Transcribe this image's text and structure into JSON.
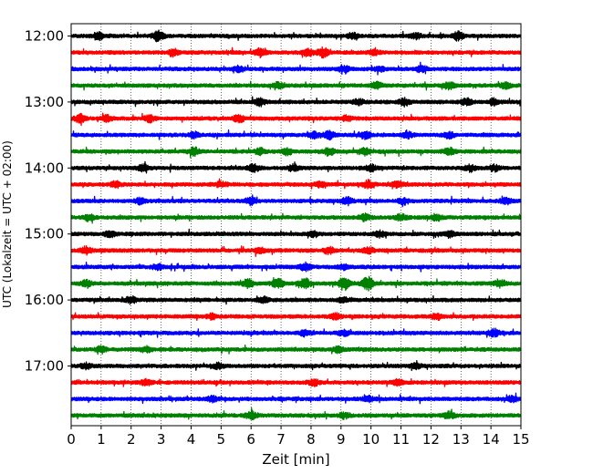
{
  "chart_data": {
    "type": "line",
    "title": "",
    "xlabel": "Zeit  [min]",
    "ylabel": "UTC (Lokalzeit = UTC + 02:00)",
    "xlim": [
      0,
      15
    ],
    "x_ticks": [
      "0",
      "1",
      "2",
      "3",
      "4",
      "5",
      "6",
      "7",
      "8",
      "9",
      "10",
      "11",
      "12",
      "13",
      "14",
      "15"
    ],
    "grid": {
      "x": true,
      "y": false,
      "style": "dotted"
    },
    "legend": "none",
    "y_ticks": [
      {
        "label": "12:00",
        "row": 0
      },
      {
        "label": "13:00",
        "row": 4
      },
      {
        "label": "14:00",
        "row": 8
      },
      {
        "label": "15:00",
        "row": 12
      },
      {
        "label": "16:00",
        "row": 16
      },
      {
        "label": "17:00",
        "row": 20
      }
    ],
    "trace_colors": [
      "#000000",
      "#ff0000",
      "#0000ff",
      "#008000"
    ],
    "series": [
      {
        "start": "12:00",
        "color": "#000000",
        "events": [
          [
            0.9,
            2.2
          ],
          [
            2.9,
            3.0
          ],
          [
            12.9,
            2.6
          ],
          [
            11.5,
            1.6
          ],
          [
            9.4,
            1.5
          ]
        ]
      },
      {
        "start": "12:15",
        "color": "#ff0000",
        "events": [
          [
            8.4,
            3.0
          ],
          [
            6.3,
            2.4
          ],
          [
            7.9,
            2.2
          ],
          [
            3.4,
            2.0
          ],
          [
            10.1,
            1.5
          ]
        ]
      },
      {
        "start": "12:30",
        "color": "#0000ff",
        "events": [
          [
            11.7,
            2.2
          ],
          [
            5.6,
            1.6
          ],
          [
            10.3,
            1.5
          ],
          [
            9.1,
            1.8
          ]
        ]
      },
      {
        "start": "12:45",
        "color": "#008000",
        "events": [
          [
            12.6,
            2.0
          ],
          [
            10.2,
            1.9
          ],
          [
            6.9,
            1.6
          ],
          [
            14.5,
            1.6
          ]
        ]
      },
      {
        "start": "13:00",
        "color": "#000000",
        "events": [
          [
            6.3,
            2.1
          ],
          [
            11.1,
            2.2
          ],
          [
            13.2,
            2.0
          ],
          [
            9.6,
            1.6
          ],
          [
            14.1,
            1.9
          ]
        ]
      },
      {
        "start": "13:15",
        "color": "#ff0000",
        "events": [
          [
            0.3,
            2.4
          ],
          [
            1.2,
            1.8
          ],
          [
            2.6,
            2.0
          ],
          [
            5.6,
            2.0
          ],
          [
            9.2,
            1.5
          ]
        ]
      },
      {
        "start": "13:30",
        "color": "#0000ff",
        "events": [
          [
            8.1,
            2.0
          ],
          [
            8.6,
            2.5
          ],
          [
            9.8,
            2.2
          ],
          [
            11.2,
            1.9
          ],
          [
            12.6,
            1.7
          ],
          [
            4.1,
            1.6
          ]
        ]
      },
      {
        "start": "13:45",
        "color": "#008000",
        "events": [
          [
            4.1,
            2.2
          ],
          [
            8.6,
            2.2
          ],
          [
            9.8,
            2.0
          ],
          [
            6.3,
            1.8
          ],
          [
            7.2,
            1.8
          ],
          [
            12.6,
            2.0
          ]
        ]
      },
      {
        "start": "14:00",
        "color": "#000000",
        "events": [
          [
            2.4,
            1.8
          ],
          [
            6.1,
            2.0
          ],
          [
            7.4,
            1.8
          ],
          [
            10.0,
            1.8
          ],
          [
            13.3,
            1.9
          ],
          [
            14.1,
            1.8
          ]
        ]
      },
      {
        "start": "14:15",
        "color": "#ff0000",
        "events": [
          [
            1.5,
            1.8
          ],
          [
            5.0,
            1.6
          ],
          [
            9.9,
            2.2
          ],
          [
            10.9,
            1.8
          ],
          [
            8.3,
            1.6
          ]
        ]
      },
      {
        "start": "14:30",
        "color": "#0000ff",
        "events": [
          [
            6.0,
            2.2
          ],
          [
            9.2,
            2.2
          ],
          [
            2.3,
            1.6
          ],
          [
            11.1,
            1.8
          ],
          [
            14.5,
            1.8
          ]
        ]
      },
      {
        "start": "14:45",
        "color": "#008000",
        "events": [
          [
            0.6,
            1.7
          ],
          [
            9.8,
            1.9
          ],
          [
            11.0,
            1.8
          ],
          [
            12.2,
            1.6
          ]
        ]
      },
      {
        "start": "15:00",
        "color": "#000000",
        "events": [
          [
            1.3,
            1.8
          ],
          [
            12.6,
            2.0
          ],
          [
            10.3,
            1.7
          ],
          [
            8.1,
            1.6
          ]
        ]
      },
      {
        "start": "15:15",
        "color": "#ff0000",
        "events": [
          [
            0.5,
            2.2
          ],
          [
            6.3,
            2.0
          ],
          [
            8.6,
            1.8
          ],
          [
            9.9,
            1.8
          ]
        ]
      },
      {
        "start": "15:30",
        "color": "#0000ff",
        "events": [
          [
            7.8,
            2.2
          ],
          [
            2.9,
            1.7
          ],
          [
            9.1,
            1.6
          ]
        ]
      },
      {
        "start": "15:45",
        "color": "#008000",
        "events": [
          [
            5.9,
            2.4
          ],
          [
            6.9,
            2.8
          ],
          [
            7.8,
            3.0
          ],
          [
            9.1,
            4.0
          ],
          [
            9.9,
            4.5
          ],
          [
            14.3,
            2.4
          ],
          [
            0.5,
            1.7
          ]
        ]
      },
      {
        "start": "16:00",
        "color": "#000000",
        "events": [
          [
            2.0,
            2.0
          ],
          [
            6.4,
            1.8
          ],
          [
            9.1,
            1.6
          ]
        ]
      },
      {
        "start": "16:15",
        "color": "#ff0000",
        "events": [
          [
            8.8,
            2.0
          ],
          [
            12.2,
            1.7
          ],
          [
            4.7,
            1.5
          ]
        ]
      },
      {
        "start": "16:30",
        "color": "#0000ff",
        "events": [
          [
            14.1,
            2.2
          ],
          [
            7.8,
            1.6
          ],
          [
            9.1,
            1.8
          ]
        ]
      },
      {
        "start": "16:45",
        "color": "#008000",
        "events": [
          [
            1.0,
            1.7
          ],
          [
            2.5,
            1.6
          ],
          [
            8.9,
            1.6
          ]
        ]
      },
      {
        "start": "17:00",
        "color": "#000000",
        "events": [
          [
            0.5,
            1.6
          ],
          [
            4.9,
            1.7
          ],
          [
            11.5,
            1.6
          ]
        ]
      },
      {
        "start": "17:15",
        "color": "#ff0000",
        "events": [
          [
            8.1,
            1.7
          ],
          [
            2.5,
            1.5
          ],
          [
            10.9,
            1.5
          ]
        ]
      },
      {
        "start": "17:30",
        "color": "#0000ff",
        "events": [
          [
            9.9,
            1.6
          ],
          [
            14.7,
            1.7
          ],
          [
            4.7,
            1.5
          ]
        ]
      },
      {
        "start": "17:45",
        "color": "#008000",
        "events": [
          [
            6.0,
            2.0
          ],
          [
            12.6,
            2.0
          ],
          [
            9.1,
            1.7
          ]
        ]
      }
    ]
  }
}
